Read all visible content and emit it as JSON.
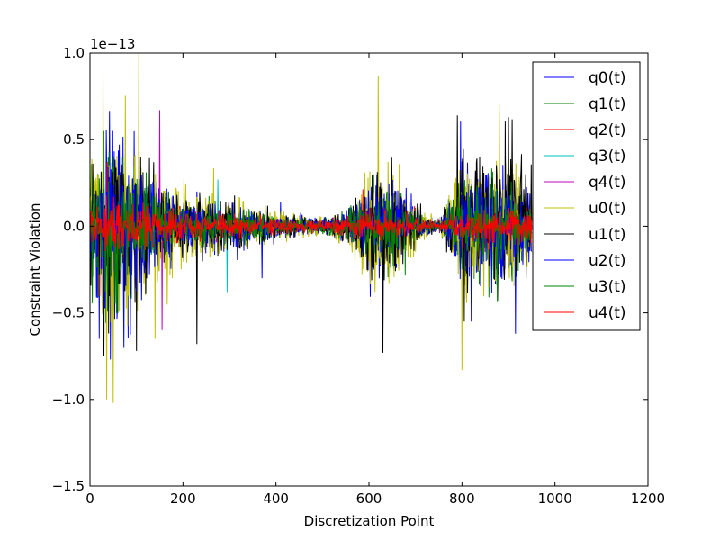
{
  "chart_data": {
    "type": "line",
    "title": "",
    "xlabel": "Discretization Point",
    "ylabel": "Constraint Violation",
    "y_scale_note": "1e−13",
    "xlim": [
      0,
      1200
    ],
    "ylim": [
      -1.5,
      1.0
    ],
    "y_multiplier": 1e-13,
    "x_ticks": [
      0,
      200,
      400,
      600,
      800,
      1000,
      1200
    ],
    "x_tick_labels": [
      "0",
      "200",
      "400",
      "600",
      "800",
      "1000",
      "1200"
    ],
    "y_ticks": [
      -1.5,
      -1.0,
      -0.5,
      0.0,
      0.5,
      1.0
    ],
    "y_tick_labels": [
      "−1.5",
      "−1.0",
      "−0.5",
      "0.0",
      "0.5",
      "1.0"
    ],
    "grid": false,
    "legend_position": "top-right",
    "x_range_of_data": [
      0,
      950
    ],
    "series": [
      {
        "name": "q0(t)",
        "color": "#0000ff",
        "envelope": [
          [
            0,
            0.35
          ],
          [
            50,
            0.62
          ],
          [
            100,
            0.35
          ],
          [
            150,
            0.25
          ],
          [
            200,
            0.15
          ],
          [
            300,
            0.12
          ],
          [
            400,
            0.07
          ],
          [
            500,
            0.04
          ],
          [
            550,
            0.08
          ],
          [
            600,
            0.25
          ],
          [
            650,
            0.3
          ],
          [
            700,
            0.1
          ],
          [
            750,
            0.02
          ],
          [
            800,
            0.3
          ],
          [
            850,
            0.35
          ],
          [
            900,
            0.3
          ],
          [
            950,
            0.2
          ]
        ],
        "peaks": [
          [
            20,
            -0.65
          ],
          [
            230,
            0.2
          ],
          [
            370,
            -0.3
          ],
          [
            630,
            -0.6
          ],
          [
            820,
            -0.55
          ],
          [
            915,
            -0.62
          ]
        ]
      },
      {
        "name": "q1(t)",
        "color": "#008000",
        "envelope": [
          [
            0,
            0.3
          ],
          [
            50,
            0.5
          ],
          [
            100,
            0.3
          ],
          [
            150,
            0.2
          ],
          [
            200,
            0.12
          ],
          [
            300,
            0.1
          ],
          [
            400,
            0.05
          ],
          [
            500,
            0.03
          ],
          [
            550,
            0.06
          ],
          [
            600,
            0.2
          ],
          [
            650,
            0.25
          ],
          [
            700,
            0.08
          ],
          [
            750,
            0.02
          ],
          [
            800,
            0.25
          ],
          [
            850,
            0.3
          ],
          [
            900,
            0.25
          ],
          [
            950,
            0.15
          ]
        ],
        "peaks": [
          [
            30,
            0.55
          ],
          [
            60,
            -0.5
          ],
          [
            610,
            0.3
          ],
          [
            810,
            -0.4
          ]
        ]
      },
      {
        "name": "q2(t)",
        "color": "#ff0000",
        "envelope": [
          [
            0,
            0.15
          ],
          [
            50,
            0.2
          ],
          [
            100,
            0.15
          ],
          [
            150,
            0.12
          ],
          [
            200,
            0.08
          ],
          [
            300,
            0.06
          ],
          [
            400,
            0.04
          ],
          [
            500,
            0.03
          ],
          [
            600,
            0.1
          ],
          [
            700,
            0.05
          ],
          [
            750,
            0.02
          ],
          [
            800,
            0.1
          ],
          [
            900,
            0.12
          ],
          [
            950,
            0.1
          ]
        ],
        "peaks": []
      },
      {
        "name": "q3(t)",
        "color": "#00bfbf",
        "envelope": [
          [
            0,
            0.08
          ],
          [
            100,
            0.08
          ],
          [
            200,
            0.06
          ],
          [
            300,
            0.05
          ],
          [
            400,
            0.03
          ],
          [
            500,
            0.02
          ],
          [
            600,
            0.05
          ],
          [
            700,
            0.03
          ],
          [
            800,
            0.05
          ],
          [
            950,
            0.04
          ]
        ],
        "peaks": [
          [
            275,
            0.27
          ],
          [
            295,
            -0.38
          ]
        ]
      },
      {
        "name": "q4(t)",
        "color": "#bf00bf",
        "envelope": [
          [
            0,
            0.08
          ],
          [
            100,
            0.08
          ],
          [
            200,
            0.06
          ],
          [
            300,
            0.05
          ],
          [
            400,
            0.03
          ],
          [
            500,
            0.02
          ],
          [
            600,
            0.05
          ],
          [
            700,
            0.03
          ],
          [
            800,
            0.05
          ],
          [
            950,
            0.04
          ]
        ],
        "peaks": [
          [
            150,
            0.67
          ],
          [
            155,
            -0.6
          ]
        ]
      },
      {
        "name": "u0(t)",
        "color": "#bfbf00",
        "envelope": [
          [
            0,
            0.35
          ],
          [
            50,
            0.6
          ],
          [
            100,
            0.45
          ],
          [
            150,
            0.3
          ],
          [
            200,
            0.2
          ],
          [
            300,
            0.15
          ],
          [
            400,
            0.08
          ],
          [
            500,
            0.05
          ],
          [
            550,
            0.1
          ],
          [
            600,
            0.3
          ],
          [
            650,
            0.35
          ],
          [
            700,
            0.12
          ],
          [
            750,
            0.03
          ],
          [
            800,
            0.35
          ],
          [
            850,
            0.35
          ],
          [
            900,
            0.35
          ],
          [
            950,
            0.2
          ]
        ],
        "peaks": [
          [
            28,
            0.91
          ],
          [
            36,
            -1.0
          ],
          [
            50,
            -1.02
          ],
          [
            105,
            1.0
          ],
          [
            140,
            -0.65
          ],
          [
            620,
            0.87
          ],
          [
            800,
            -0.83
          ],
          [
            880,
            0.7
          ]
        ]
      },
      {
        "name": "u1(t)",
        "color": "#000000",
        "envelope": [
          [
            0,
            0.3
          ],
          [
            50,
            0.45
          ],
          [
            100,
            0.35
          ],
          [
            150,
            0.25
          ],
          [
            200,
            0.18
          ],
          [
            300,
            0.15
          ],
          [
            400,
            0.07
          ],
          [
            500,
            0.04
          ],
          [
            550,
            0.08
          ],
          [
            600,
            0.25
          ],
          [
            650,
            0.3
          ],
          [
            700,
            0.1
          ],
          [
            750,
            0.02
          ],
          [
            800,
            0.3
          ],
          [
            850,
            0.35
          ],
          [
            900,
            0.35
          ],
          [
            950,
            0.2
          ]
        ],
        "peaks": [
          [
            30,
            -0.75
          ],
          [
            100,
            -0.72
          ],
          [
            230,
            -0.68
          ],
          [
            630,
            -0.73
          ],
          [
            790,
            0.64
          ],
          [
            805,
            -0.55
          ],
          [
            900,
            0.63
          ]
        ]
      },
      {
        "name": "u2(t)",
        "color": "#0000ff",
        "envelope": [
          [
            0,
            0.25
          ],
          [
            50,
            0.4
          ],
          [
            100,
            0.3
          ],
          [
            150,
            0.2
          ],
          [
            200,
            0.12
          ],
          [
            300,
            0.1
          ],
          [
            400,
            0.05
          ],
          [
            500,
            0.03
          ],
          [
            600,
            0.18
          ],
          [
            650,
            0.22
          ],
          [
            700,
            0.07
          ],
          [
            750,
            0.02
          ],
          [
            800,
            0.22
          ],
          [
            900,
            0.25
          ],
          [
            950,
            0.15
          ]
        ],
        "peaks": []
      },
      {
        "name": "u3(t)",
        "color": "#008000",
        "envelope": [
          [
            0,
            0.25
          ],
          [
            50,
            0.35
          ],
          [
            100,
            0.25
          ],
          [
            150,
            0.18
          ],
          [
            200,
            0.1
          ],
          [
            300,
            0.08
          ],
          [
            400,
            0.05
          ],
          [
            500,
            0.03
          ],
          [
            600,
            0.15
          ],
          [
            650,
            0.18
          ],
          [
            700,
            0.06
          ],
          [
            750,
            0.02
          ],
          [
            800,
            0.18
          ],
          [
            900,
            0.2
          ],
          [
            950,
            0.12
          ]
        ],
        "peaks": []
      },
      {
        "name": "u4(t)",
        "color": "#ff0000",
        "envelope": [
          [
            0,
            0.12
          ],
          [
            50,
            0.15
          ],
          [
            100,
            0.12
          ],
          [
            150,
            0.1
          ],
          [
            200,
            0.07
          ],
          [
            300,
            0.06
          ],
          [
            400,
            0.04
          ],
          [
            500,
            0.03
          ],
          [
            600,
            0.08
          ],
          [
            700,
            0.04
          ],
          [
            750,
            0.02
          ],
          [
            800,
            0.08
          ],
          [
            900,
            0.1
          ],
          [
            950,
            0.08
          ]
        ],
        "peaks": []
      }
    ]
  }
}
